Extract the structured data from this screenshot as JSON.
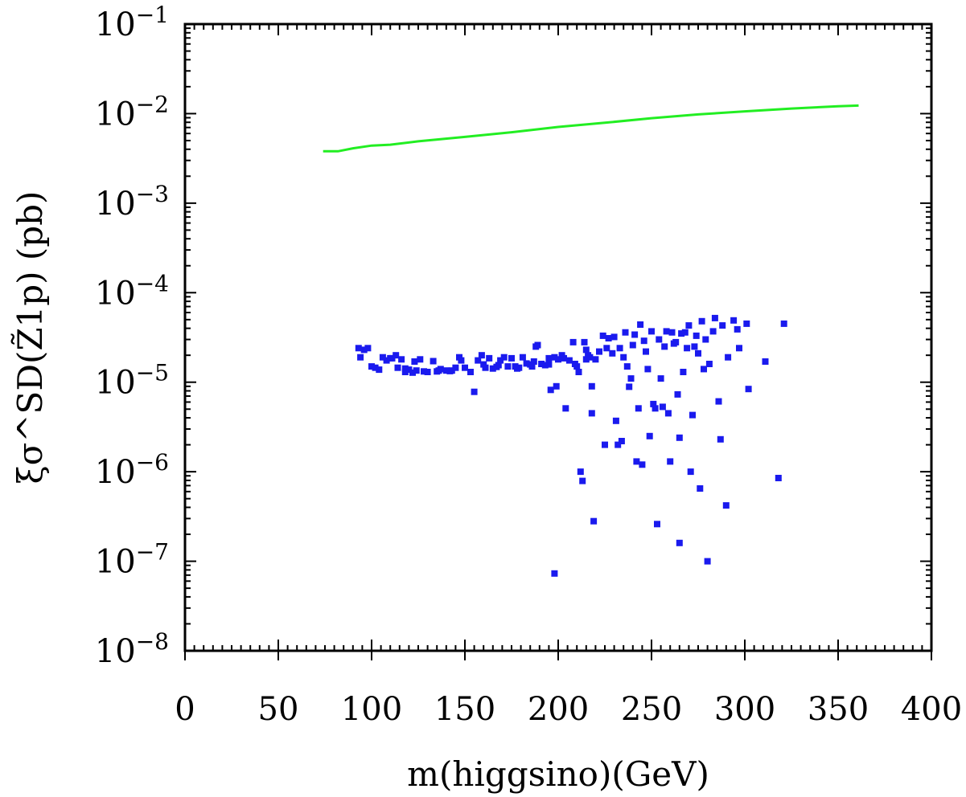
{
  "chart_data": {
    "type": "scatter",
    "title": "",
    "xlabel": "m(higgsino)(GeV)",
    "ylabel": "ξσ^SD(Z̃1p) (pb)",
    "xlim": [
      0,
      400
    ],
    "ylim": [
      1e-08,
      0.1
    ],
    "yscale": "log",
    "grid": false,
    "legend": "none",
    "x_ticks": [
      "0",
      "50",
      "100",
      "150",
      "200",
      "250",
      "300",
      "350",
      "400"
    ],
    "y_ticks": [
      {
        "base": "10",
        "exp": "−8"
      },
      {
        "base": "10",
        "exp": "−7"
      },
      {
        "base": "10",
        "exp": "−6"
      },
      {
        "base": "10",
        "exp": "−5"
      },
      {
        "base": "10",
        "exp": "−4"
      },
      {
        "base": "10",
        "exp": "−3"
      },
      {
        "base": "10",
        "exp": "−2"
      },
      {
        "base": "10",
        "exp": "−1"
      }
    ],
    "series": [
      {
        "type": "line",
        "color": "#22ee22",
        "points": [
          [
            74,
            0.0038
          ],
          [
            82,
            0.0038
          ],
          [
            90,
            0.0041
          ],
          [
            100,
            0.0044
          ],
          [
            110,
            0.0045
          ],
          [
            125,
            0.0049
          ],
          [
            150,
            0.0055
          ],
          [
            175,
            0.0062
          ],
          [
            200,
            0.0071
          ],
          [
            225,
            0.0079
          ],
          [
            250,
            0.0089
          ],
          [
            275,
            0.0098
          ],
          [
            300,
            0.0106
          ],
          [
            325,
            0.0114
          ],
          [
            350,
            0.0121
          ],
          [
            361,
            0.0123
          ]
        ]
      },
      {
        "type": "scatter",
        "color": "#1a1aee",
        "points": [
          [
            93,
            2.4e-05
          ],
          [
            94,
            1.9e-05
          ],
          [
            96,
            2.3e-05
          ],
          [
            98,
            2.4e-05
          ],
          [
            100,
            1.5e-05
          ],
          [
            102,
            1.45e-05
          ],
          [
            104,
            1.38e-05
          ],
          [
            106,
            1.9e-05
          ],
          [
            108,
            1.75e-05
          ],
          [
            111,
            1.85e-05
          ],
          [
            113,
            2e-05
          ],
          [
            114,
            1.45e-05
          ],
          [
            116,
            1.8e-05
          ],
          [
            118,
            1.42e-05
          ],
          [
            120,
            1.38e-05
          ],
          [
            122,
            1.28e-05
          ],
          [
            123,
            1.7e-05
          ],
          [
            124,
            1.35e-05
          ],
          [
            126,
            1.8e-05
          ],
          [
            128,
            1.32e-05
          ],
          [
            130,
            1.3e-05
          ],
          [
            133,
            1.72e-05
          ],
          [
            135,
            1.32e-05
          ],
          [
            137,
            1.4e-05
          ],
          [
            140,
            1.35e-05
          ],
          [
            142,
            1.33e-05
          ],
          [
            145,
            1.45e-05
          ],
          [
            147,
            1.9e-05
          ],
          [
            148,
            1.75e-05
          ],
          [
            150,
            1.45e-05
          ],
          [
            153,
            1.3e-05
          ],
          [
            155,
            7.8e-06
          ],
          [
            157,
            1.75e-05
          ],
          [
            159,
            2e-05
          ],
          [
            161,
            1.45e-05
          ],
          [
            163,
            1.85e-05
          ],
          [
            165,
            1.42e-05
          ],
          [
            167,
            1.48e-05
          ],
          [
            169,
            1.75e-05
          ],
          [
            171,
            1.9e-05
          ],
          [
            173,
            1.5e-05
          ],
          [
            175,
            1.85e-05
          ],
          [
            177,
            1.5e-05
          ],
          [
            179,
            1.45e-05
          ],
          [
            181,
            1.9e-05
          ],
          [
            183,
            1.62e-05
          ],
          [
            185,
            1.58e-05
          ],
          [
            187,
            1.7e-05
          ],
          [
            189,
            2.6e-05
          ],
          [
            191,
            1.6e-05
          ],
          [
            193,
            1.55e-05
          ],
          [
            195,
            1.85e-05
          ],
          [
            196,
            8.2e-06
          ],
          [
            198,
            1.9e-05
          ],
          [
            199,
            9e-06
          ],
          [
            200,
            1.8e-05
          ],
          [
            202,
            2e-05
          ],
          [
            204,
            5.1e-06
          ],
          [
            206,
            1.75e-05
          ],
          [
            208,
            2.8e-05
          ],
          [
            209,
            1.6e-05
          ],
          [
            210,
            1.5e-05
          ],
          [
            211,
            1.3e-05
          ],
          [
            212,
            1e-06
          ],
          [
            213,
            7.9e-07
          ],
          [
            214,
            2.8e-05
          ],
          [
            215,
            2.3e-05
          ],
          [
            216,
            2e-05
          ],
          [
            217,
            1.9e-05
          ],
          [
            218,
            9e-06
          ],
          [
            218,
            4.5e-06
          ],
          [
            219,
            2.8e-07
          ],
          [
            220,
            1.8e-05
          ],
          [
            222,
            2.2e-05
          ],
          [
            224,
            3.3e-05
          ],
          [
            225,
            2e-06
          ],
          [
            226,
            2.4e-05
          ],
          [
            227,
            3.1e-05
          ],
          [
            229,
            2.1e-05
          ],
          [
            230,
            3.2e-05
          ],
          [
            231,
            3.7e-06
          ],
          [
            232,
            2e-06
          ],
          [
            233,
            2.4e-05
          ],
          [
            234,
            2.2e-06
          ],
          [
            235,
            1.9e-05
          ],
          [
            236,
            3.6e-05
          ],
          [
            237,
            1.5e-05
          ],
          [
            238,
            8.9e-06
          ],
          [
            239,
            1.1e-05
          ],
          [
            240,
            2.6e-05
          ],
          [
            241,
            3.4e-05
          ],
          [
            242,
            1.3e-06
          ],
          [
            243,
            5.1e-06
          ],
          [
            244,
            4.4e-05
          ],
          [
            245,
            1.2e-06
          ],
          [
            246,
            2.9e-05
          ],
          [
            247,
            2.2e-05
          ],
          [
            248,
            1.4e-05
          ],
          [
            249,
            2.5e-06
          ],
          [
            250,
            3.7e-05
          ],
          [
            251,
            5.7e-06
          ],
          [
            252,
            5.1e-06
          ],
          [
            253,
            2.6e-07
          ],
          [
            254,
            3e-05
          ],
          [
            255,
            1.1e-05
          ],
          [
            256,
            5.3e-06
          ],
          [
            257,
            2.5e-05
          ],
          [
            258,
            3.7e-05
          ],
          [
            259,
            4.5e-06
          ],
          [
            260,
            1.3e-06
          ],
          [
            261,
            3.6e-05
          ],
          [
            262,
            2.7e-05
          ],
          [
            263,
            2.8e-05
          ],
          [
            264,
            7.3e-06
          ],
          [
            265,
            1.6e-07
          ],
          [
            265,
            2.4e-06
          ],
          [
            266,
            3.5e-05
          ],
          [
            267,
            1.3e-05
          ],
          [
            268,
            3.6e-05
          ],
          [
            269,
            2.4e-05
          ],
          [
            270,
            4.3e-05
          ],
          [
            271,
            1e-06
          ],
          [
            272,
            4.3e-06
          ],
          [
            273,
            2.5e-05
          ],
          [
            274,
            3.3e-05
          ],
          [
            275,
            2.1e-05
          ],
          [
            276,
            6.5e-07
          ],
          [
            277,
            4.8e-05
          ],
          [
            278,
            1.4e-05
          ],
          [
            279,
            3e-05
          ],
          [
            280,
            1e-07
          ],
          [
            281,
            1.6e-05
          ],
          [
            283,
            3.7e-05
          ],
          [
            284,
            5.2e-05
          ],
          [
            286,
            6.1e-06
          ],
          [
            287,
            2.3e-06
          ],
          [
            288,
            4.3e-05
          ],
          [
            290,
            4.2e-07
          ],
          [
            291,
            1.9e-05
          ],
          [
            294,
            4.9e-05
          ],
          [
            296,
            3.9e-05
          ],
          [
            297,
            2.4e-05
          ],
          [
            301,
            4.5e-05
          ],
          [
            302,
            8.4e-06
          ],
          [
            311,
            1.7e-05
          ],
          [
            318,
            8.5e-07
          ],
          [
            321,
            4.5e-05
          ],
          [
            198,
            7.3e-08
          ],
          [
            215,
            1.8e-05
          ],
          [
            203,
            1.85e-05
          ],
          [
            195,
            1.58e-05
          ],
          [
            186,
            1.5e-05
          ],
          [
            178,
            1.42e-05
          ],
          [
            168,
            1.55e-05
          ],
          [
            160,
            1.58e-05
          ],
          [
            143,
            1.35e-05
          ],
          [
            136,
            1.35e-05
          ],
          [
            118,
            1.3e-05
          ],
          [
            110,
            1.85e-05
          ],
          [
            188,
            2.5e-05
          ]
        ]
      }
    ]
  }
}
